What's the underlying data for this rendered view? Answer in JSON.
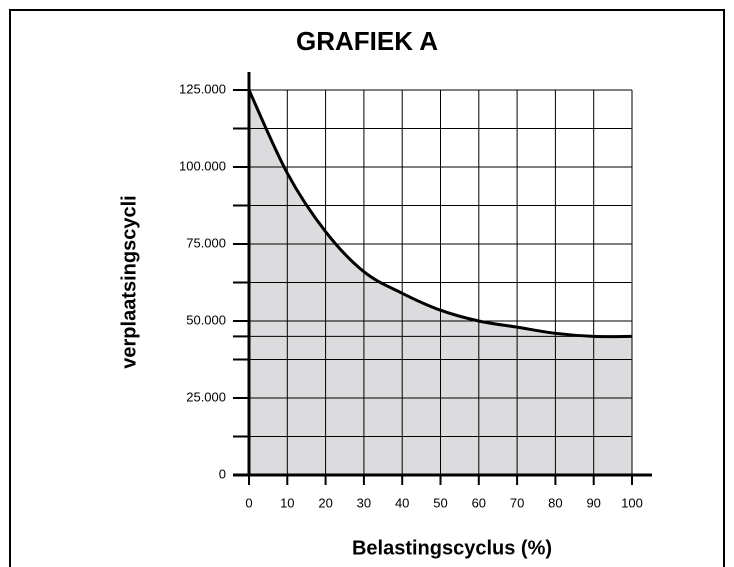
{
  "chart_data": {
    "type": "area",
    "title": "GRAFIEK A",
    "x_label": "Belastingscyclus (%)",
    "y_label": "verplaatsingscycli",
    "x": [
      0,
      10,
      20,
      30,
      40,
      50,
      60,
      70,
      80,
      90,
      100
    ],
    "values": [
      125000,
      98000,
      79000,
      66000,
      59000,
      53500,
      50000,
      48000,
      46000,
      45000,
      45000
    ],
    "color": "#dcdcde",
    "line_color": "#000000",
    "xlim": [
      0,
      100
    ],
    "xticks": [
      0,
      10,
      20,
      30,
      40,
      50,
      60,
      70,
      80,
      90,
      100
    ],
    "ylim": [
      0,
      125000
    ],
    "yticks": [
      0,
      {
        "value": 25000,
        "label": "25.000"
      },
      {
        "value": 50000,
        "label": "50.000"
      },
      {
        "value": 75000,
        "label": "75.000"
      },
      {
        "value": 100000,
        "label": "100.000"
      },
      {
        "value": 125000,
        "label": "125.000"
      }
    ],
    "yminor": [
      12500,
      37500,
      45000,
      62500,
      87500,
      112500
    ],
    "grid": true
  }
}
